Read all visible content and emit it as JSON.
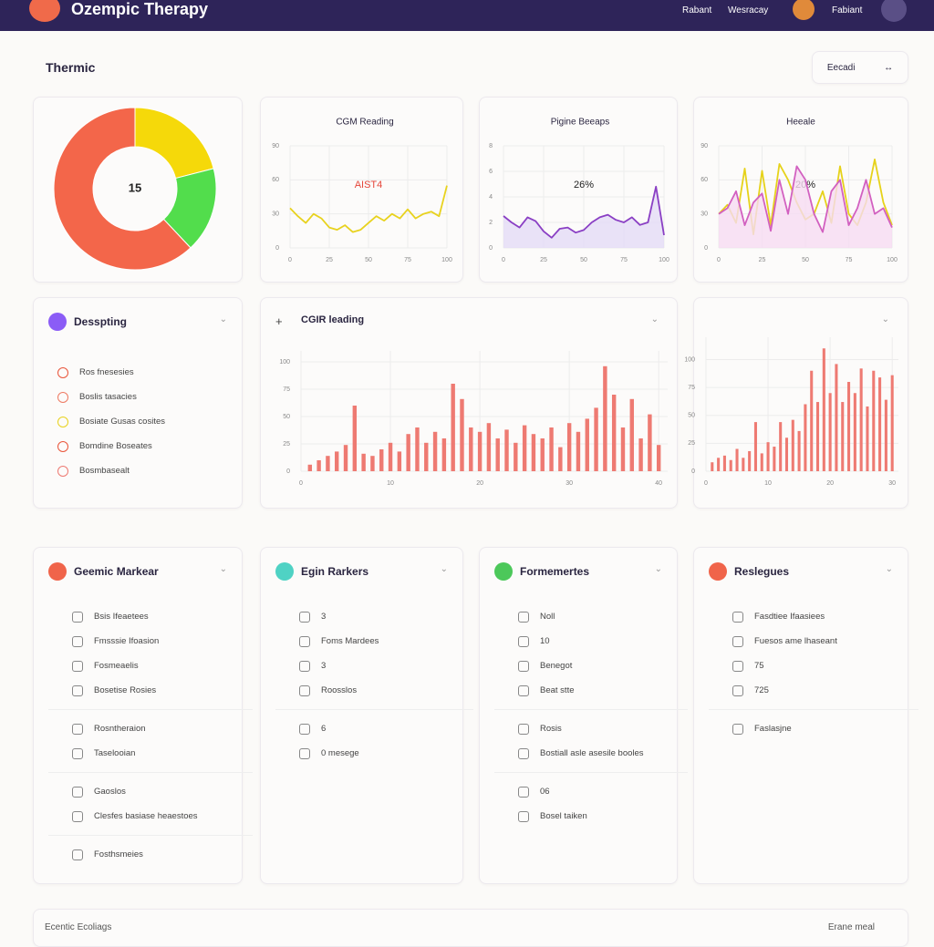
{
  "header": {
    "title": "Ozempic Therapy",
    "nav": [
      "Rabant",
      "Wesracay",
      "Fabiant"
    ]
  },
  "toolbar": {
    "title": "Thermic",
    "button": "Eecadi"
  },
  "chart_data": [
    {
      "type": "pie",
      "center_label": "15",
      "values": [
        21,
        17,
        62
      ],
      "colors": [
        "#f5d90a",
        "#52dd4c",
        "#f3664a"
      ]
    },
    {
      "type": "line",
      "title": "CGM Reading",
      "annotation": "AIST4",
      "annotation_color": "#e5463a",
      "x": [
        0,
        5,
        10,
        15,
        20,
        25,
        30,
        35,
        40,
        45,
        50,
        55,
        60,
        65,
        70,
        75,
        80,
        85,
        90,
        95,
        100
      ],
      "xlim": [
        0,
        100
      ],
      "xticks": [
        0,
        25,
        50,
        75,
        100
      ],
      "ylim": [
        0,
        90
      ],
      "yticks": [
        0,
        30,
        60,
        90
      ],
      "grid": true,
      "series": [
        {
          "color": "#e8d21e",
          "values": [
            35,
            28,
            22,
            30,
            26,
            18,
            16,
            20,
            14,
            16,
            22,
            28,
            24,
            30,
            26,
            34,
            26,
            30,
            32,
            28,
            55
          ]
        }
      ]
    },
    {
      "type": "area",
      "title": "Pigine Beeaps",
      "annotation": "26%",
      "annotation_color": "#222",
      "x": [
        0,
        5,
        10,
        15,
        20,
        25,
        30,
        35,
        40,
        45,
        50,
        55,
        60,
        65,
        70,
        75,
        80,
        85,
        90,
        95,
        100
      ],
      "xlim": [
        0,
        100
      ],
      "xticks": [
        0,
        25,
        50,
        75,
        100
      ],
      "ylim": [
        0,
        8
      ],
      "yticks": [
        0,
        2,
        4,
        6,
        8
      ],
      "grid": true,
      "series": [
        {
          "color": "#8a3fc4",
          "fill": "#e4dcf6",
          "values": [
            2.5,
            2.0,
            1.6,
            2.4,
            2.1,
            1.3,
            0.8,
            1.5,
            1.6,
            1.2,
            1.4,
            2.0,
            2.4,
            2.6,
            2.2,
            2.0,
            2.4,
            1.8,
            2.0,
            4.8,
            1.0
          ]
        }
      ]
    },
    {
      "type": "area",
      "title": "Heeale",
      "annotation": "20%",
      "annotation_color": "#222",
      "x": [
        0,
        5,
        10,
        15,
        20,
        25,
        30,
        35,
        40,
        45,
        50,
        55,
        60,
        65,
        70,
        75,
        80,
        85,
        90,
        95,
        100
      ],
      "xlim": [
        0,
        100
      ],
      "xticks": [
        0,
        25,
        50,
        75,
        100
      ],
      "ylim": [
        0,
        90
      ],
      "yticks": [
        0,
        30,
        60,
        90
      ],
      "grid": true,
      "series": [
        {
          "color": "#e6d21a",
          "values": [
            30,
            38,
            22,
            70,
            12,
            68,
            20,
            74,
            60,
            40,
            25,
            30,
            50,
            22,
            72,
            30,
            20,
            40,
            78,
            40,
            20
          ]
        },
        {
          "color": "#d260c0",
          "fill": "#f6dcf2",
          "values": [
            30,
            35,
            50,
            20,
            40,
            48,
            15,
            60,
            30,
            72,
            60,
            30,
            14,
            50,
            60,
            20,
            35,
            60,
            30,
            35,
            18
          ]
        }
      ]
    },
    {
      "type": "bar",
      "title": "CGIR leading",
      "color": "#ee7a72",
      "x": [
        1,
        2,
        3,
        4,
        5,
        6,
        7,
        8,
        9,
        10,
        11,
        12,
        13,
        14,
        15,
        16,
        17,
        18,
        19,
        20,
        21,
        22,
        23,
        24,
        25,
        26,
        27,
        28,
        29,
        30,
        31,
        32,
        33,
        34,
        35,
        36,
        37,
        38,
        39,
        40
      ],
      "values": [
        6,
        10,
        14,
        18,
        24,
        60,
        16,
        14,
        20,
        26,
        18,
        34,
        40,
        26,
        36,
        30,
        80,
        66,
        40,
        36,
        44,
        30,
        38,
        26,
        42,
        34,
        30,
        40,
        22,
        44,
        36,
        48,
        58,
        96,
        70,
        40,
        66,
        30,
        52,
        24
      ],
      "xlim": [
        0,
        41
      ],
      "xticks": [
        0,
        10,
        20,
        30,
        40
      ],
      "ylim": [
        0,
        110
      ],
      "yticks": [
        0,
        25,
        50,
        75,
        100
      ],
      "grid": true
    },
    {
      "type": "bar",
      "color": "#ee7a72",
      "x": [
        1,
        2,
        3,
        4,
        5,
        6,
        7,
        8,
        9,
        10,
        11,
        12,
        13,
        14,
        15,
        16,
        17,
        18,
        19,
        20,
        21,
        22,
        23,
        24,
        25,
        26,
        27,
        28,
        29,
        30
      ],
      "values": [
        8,
        12,
        14,
        10,
        20,
        12,
        18,
        44,
        16,
        26,
        22,
        44,
        30,
        46,
        36,
        60,
        90,
        62,
        110,
        70,
        96,
        62,
        80,
        70,
        92,
        58,
        90,
        84,
        64,
        86
      ],
      "xlim": [
        0,
        31
      ],
      "xticks": [
        0,
        10,
        20,
        30
      ],
      "ylim": [
        0,
        120
      ],
      "yticks": [
        0,
        25,
        50,
        75,
        100
      ],
      "grid": true
    }
  ],
  "panels": [
    {
      "title": "Desspting",
      "groups": [
        [
          "Ros fnesesies",
          "Boslis tasacies",
          "Bosiate Gusas cosites",
          "Bomdine Boseates",
          "Bosmbasealt"
        ]
      ]
    },
    {
      "title": "Geemic Markear",
      "groups": [
        [
          "Bsis Ifeaetees",
          "Fmsssie Ifoasion",
          "Fosmeaelis",
          "Bosetise Rosies"
        ],
        [
          "Rosntheraion",
          "Taselooian"
        ],
        [
          "Gaoslos",
          "Clesfes basiase heaestoes"
        ],
        [
          "Fosthsmeies"
        ]
      ]
    },
    {
      "title": "Egin Rarkers",
      "groups": [
        [
          "3",
          "Foms Mardees",
          "3",
          "Roosslos"
        ],
        [
          "6",
          "0 mesege"
        ]
      ]
    },
    {
      "title": "Formemertes",
      "groups": [
        [
          "Noll",
          "10",
          "Benegot",
          "Beat stte"
        ],
        [
          "Rosis",
          "Bostiall asle asesile booles"
        ],
        [
          "06",
          "Bosel taiken"
        ]
      ]
    },
    {
      "title": "Reslegues",
      "groups": [
        [
          "Fasdtiee Ifaasiees",
          "Fuesos ame lhaseant",
          "75",
          "725"
        ],
        [
          "Faslasjne"
        ]
      ]
    }
  ],
  "footer": {
    "left": "Ecentic Ecoliags",
    "right": "Erane meal"
  }
}
